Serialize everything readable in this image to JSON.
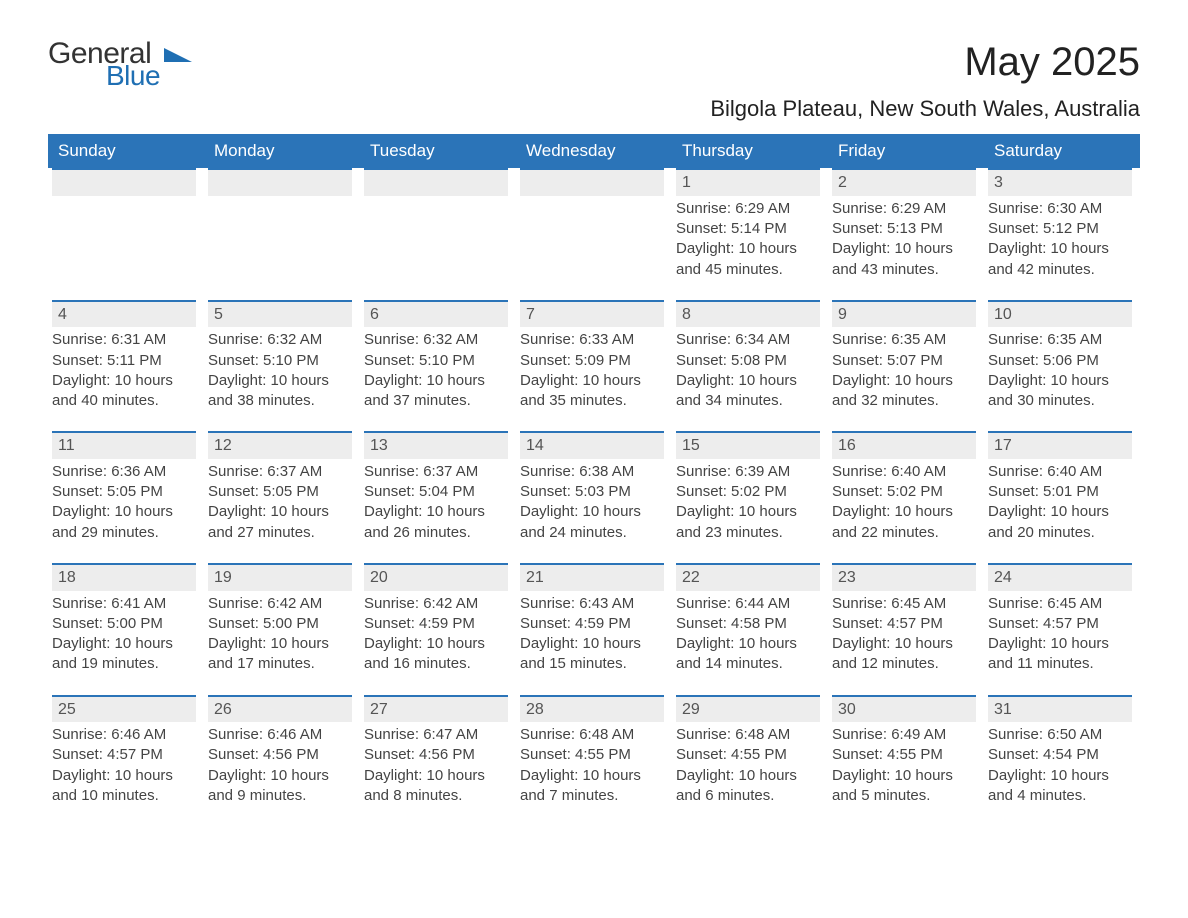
{
  "branding": {
    "logo_line1": "General",
    "logo_line2": "Blue",
    "logo_color_primary": "#333333",
    "logo_color_accent": "#1f6fb3"
  },
  "header": {
    "title": "May 2025",
    "location": "Bilgola Plateau, New South Wales, Australia"
  },
  "calendar": {
    "type": "table",
    "columns": [
      "Sunday",
      "Monday",
      "Tuesday",
      "Wednesday",
      "Thursday",
      "Friday",
      "Saturday"
    ],
    "header_bg": "#2b74b8",
    "header_fg": "#ffffff",
    "band_bg": "#ededed",
    "band_border_color": "#2b74b8",
    "text_color": "#444444",
    "title_fontsize": 40,
    "subtitle_fontsize": 22,
    "header_fontsize": 17,
    "cell_fontsize": 15,
    "weeks": [
      [
        null,
        null,
        null,
        null,
        {
          "day": "1",
          "sunrise": "Sunrise: 6:29 AM",
          "sunset": "Sunset: 5:14 PM",
          "daylight": "Daylight: 10 hours and 45 minutes."
        },
        {
          "day": "2",
          "sunrise": "Sunrise: 6:29 AM",
          "sunset": "Sunset: 5:13 PM",
          "daylight": "Daylight: 10 hours and 43 minutes."
        },
        {
          "day": "3",
          "sunrise": "Sunrise: 6:30 AM",
          "sunset": "Sunset: 5:12 PM",
          "daylight": "Daylight: 10 hours and 42 minutes."
        }
      ],
      [
        {
          "day": "4",
          "sunrise": "Sunrise: 6:31 AM",
          "sunset": "Sunset: 5:11 PM",
          "daylight": "Daylight: 10 hours and 40 minutes."
        },
        {
          "day": "5",
          "sunrise": "Sunrise: 6:32 AM",
          "sunset": "Sunset: 5:10 PM",
          "daylight": "Daylight: 10 hours and 38 minutes."
        },
        {
          "day": "6",
          "sunrise": "Sunrise: 6:32 AM",
          "sunset": "Sunset: 5:10 PM",
          "daylight": "Daylight: 10 hours and 37 minutes."
        },
        {
          "day": "7",
          "sunrise": "Sunrise: 6:33 AM",
          "sunset": "Sunset: 5:09 PM",
          "daylight": "Daylight: 10 hours and 35 minutes."
        },
        {
          "day": "8",
          "sunrise": "Sunrise: 6:34 AM",
          "sunset": "Sunset: 5:08 PM",
          "daylight": "Daylight: 10 hours and 34 minutes."
        },
        {
          "day": "9",
          "sunrise": "Sunrise: 6:35 AM",
          "sunset": "Sunset: 5:07 PM",
          "daylight": "Daylight: 10 hours and 32 minutes."
        },
        {
          "day": "10",
          "sunrise": "Sunrise: 6:35 AM",
          "sunset": "Sunset: 5:06 PM",
          "daylight": "Daylight: 10 hours and 30 minutes."
        }
      ],
      [
        {
          "day": "11",
          "sunrise": "Sunrise: 6:36 AM",
          "sunset": "Sunset: 5:05 PM",
          "daylight": "Daylight: 10 hours and 29 minutes."
        },
        {
          "day": "12",
          "sunrise": "Sunrise: 6:37 AM",
          "sunset": "Sunset: 5:05 PM",
          "daylight": "Daylight: 10 hours and 27 minutes."
        },
        {
          "day": "13",
          "sunrise": "Sunrise: 6:37 AM",
          "sunset": "Sunset: 5:04 PM",
          "daylight": "Daylight: 10 hours and 26 minutes."
        },
        {
          "day": "14",
          "sunrise": "Sunrise: 6:38 AM",
          "sunset": "Sunset: 5:03 PM",
          "daylight": "Daylight: 10 hours and 24 minutes."
        },
        {
          "day": "15",
          "sunrise": "Sunrise: 6:39 AM",
          "sunset": "Sunset: 5:02 PM",
          "daylight": "Daylight: 10 hours and 23 minutes."
        },
        {
          "day": "16",
          "sunrise": "Sunrise: 6:40 AM",
          "sunset": "Sunset: 5:02 PM",
          "daylight": "Daylight: 10 hours and 22 minutes."
        },
        {
          "day": "17",
          "sunrise": "Sunrise: 6:40 AM",
          "sunset": "Sunset: 5:01 PM",
          "daylight": "Daylight: 10 hours and 20 minutes."
        }
      ],
      [
        {
          "day": "18",
          "sunrise": "Sunrise: 6:41 AM",
          "sunset": "Sunset: 5:00 PM",
          "daylight": "Daylight: 10 hours and 19 minutes."
        },
        {
          "day": "19",
          "sunrise": "Sunrise: 6:42 AM",
          "sunset": "Sunset: 5:00 PM",
          "daylight": "Daylight: 10 hours and 17 minutes."
        },
        {
          "day": "20",
          "sunrise": "Sunrise: 6:42 AM",
          "sunset": "Sunset: 4:59 PM",
          "daylight": "Daylight: 10 hours and 16 minutes."
        },
        {
          "day": "21",
          "sunrise": "Sunrise: 6:43 AM",
          "sunset": "Sunset: 4:59 PM",
          "daylight": "Daylight: 10 hours and 15 minutes."
        },
        {
          "day": "22",
          "sunrise": "Sunrise: 6:44 AM",
          "sunset": "Sunset: 4:58 PM",
          "daylight": "Daylight: 10 hours and 14 minutes."
        },
        {
          "day": "23",
          "sunrise": "Sunrise: 6:45 AM",
          "sunset": "Sunset: 4:57 PM",
          "daylight": "Daylight: 10 hours and 12 minutes."
        },
        {
          "day": "24",
          "sunrise": "Sunrise: 6:45 AM",
          "sunset": "Sunset: 4:57 PM",
          "daylight": "Daylight: 10 hours and 11 minutes."
        }
      ],
      [
        {
          "day": "25",
          "sunrise": "Sunrise: 6:46 AM",
          "sunset": "Sunset: 4:57 PM",
          "daylight": "Daylight: 10 hours and 10 minutes."
        },
        {
          "day": "26",
          "sunrise": "Sunrise: 6:46 AM",
          "sunset": "Sunset: 4:56 PM",
          "daylight": "Daylight: 10 hours and 9 minutes."
        },
        {
          "day": "27",
          "sunrise": "Sunrise: 6:47 AM",
          "sunset": "Sunset: 4:56 PM",
          "daylight": "Daylight: 10 hours and 8 minutes."
        },
        {
          "day": "28",
          "sunrise": "Sunrise: 6:48 AM",
          "sunset": "Sunset: 4:55 PM",
          "daylight": "Daylight: 10 hours and 7 minutes."
        },
        {
          "day": "29",
          "sunrise": "Sunrise: 6:48 AM",
          "sunset": "Sunset: 4:55 PM",
          "daylight": "Daylight: 10 hours and 6 minutes."
        },
        {
          "day": "30",
          "sunrise": "Sunrise: 6:49 AM",
          "sunset": "Sunset: 4:55 PM",
          "daylight": "Daylight: 10 hours and 5 minutes."
        },
        {
          "day": "31",
          "sunrise": "Sunrise: 6:50 AM",
          "sunset": "Sunset: 4:54 PM",
          "daylight": "Daylight: 10 hours and 4 minutes."
        }
      ]
    ]
  }
}
